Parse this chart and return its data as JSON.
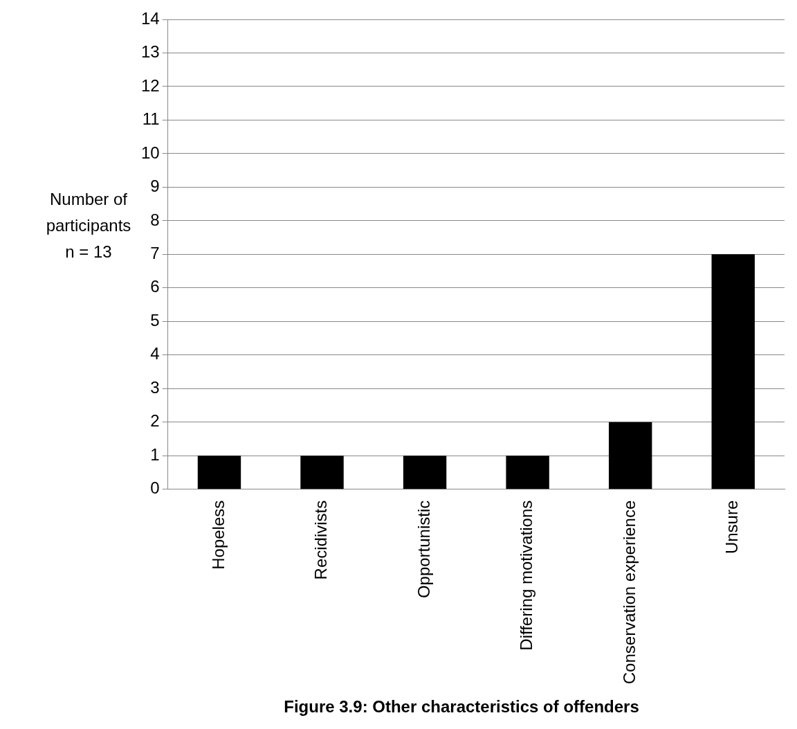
{
  "chart_data": {
    "type": "bar",
    "title": "Figure 3.9: Other characteristics of offenders",
    "ylabel": "Number of\nparticipants\nn = 13",
    "categories": [
      "Hopeless",
      "Recidivists",
      "Opportunistic",
      "Differing motivations",
      "Conservation experience",
      "Unsure"
    ],
    "values": [
      1,
      1,
      1,
      1,
      2,
      7
    ],
    "color": "#000000",
    "ylim": [
      0,
      14
    ],
    "yticks": [
      0,
      1,
      2,
      3,
      4,
      5,
      6,
      7,
      8,
      9,
      10,
      11,
      12,
      13,
      14
    ],
    "grid": "y",
    "legend": false
  }
}
